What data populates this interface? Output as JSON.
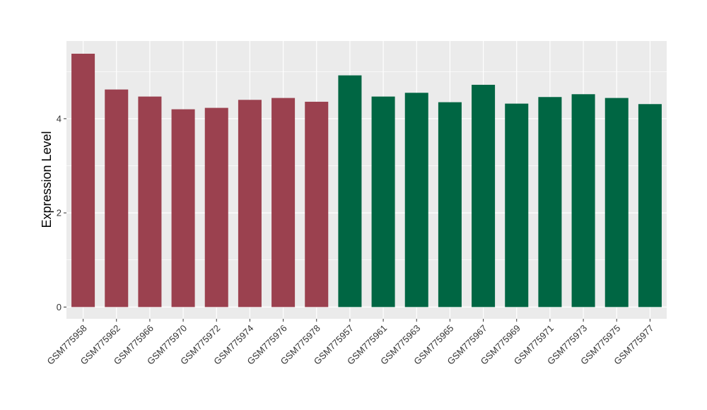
{
  "chart_data": {
    "type": "bar",
    "title": "",
    "xlabel": "",
    "ylabel": "Expression Level",
    "ylim": [
      -0.25,
      5.65
    ],
    "yticks": [
      0,
      2,
      4
    ],
    "grid": true,
    "categories": [
      "GSM775958",
      "GSM775962",
      "GSM775966",
      "GSM775970",
      "GSM775972",
      "GSM775974",
      "GSM775976",
      "GSM775978",
      "GSM775957",
      "GSM775961",
      "GSM775963",
      "GSM775965",
      "GSM775967",
      "GSM775969",
      "GSM775971",
      "GSM775973",
      "GSM775975",
      "GSM775977"
    ],
    "values": [
      5.38,
      4.62,
      4.47,
      4.2,
      4.23,
      4.4,
      4.44,
      4.36,
      4.92,
      4.47,
      4.55,
      4.35,
      4.72,
      4.32,
      4.46,
      4.52,
      4.44,
      4.31
    ],
    "group_colors": [
      "#9b414f",
      "#9b414f",
      "#9b414f",
      "#9b414f",
      "#9b414f",
      "#9b414f",
      "#9b414f",
      "#9b414f",
      "#006643",
      "#006643",
      "#006643",
      "#006643",
      "#006643",
      "#006643",
      "#006643",
      "#006643",
      "#006643",
      "#006643"
    ],
    "panel_background": "#ebebeb",
    "gridline_color": "#ffffff"
  }
}
